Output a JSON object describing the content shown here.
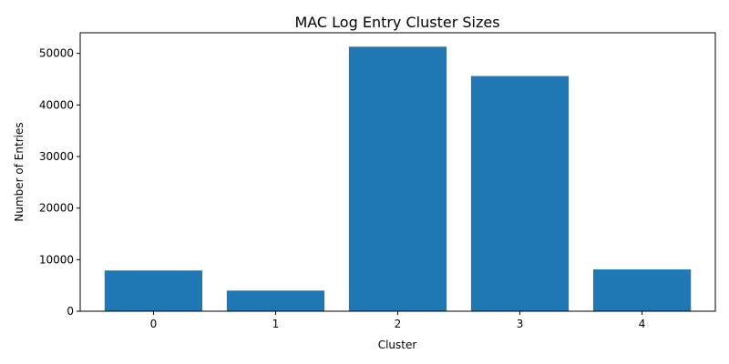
{
  "chart_data": {
    "type": "bar",
    "title": "MAC Log Entry Cluster Sizes",
    "xlabel": "Cluster",
    "ylabel": "Number of Entries",
    "categories": [
      "0",
      "1",
      "2",
      "3",
      "4"
    ],
    "values": [
      7900,
      4000,
      51300,
      45600,
      8100
    ],
    "ylim": [
      0,
      54000
    ],
    "yticks": [
      0,
      10000,
      20000,
      30000,
      40000,
      50000
    ],
    "bar_color": "#1f77b4",
    "grid": false,
    "legend": "none"
  }
}
